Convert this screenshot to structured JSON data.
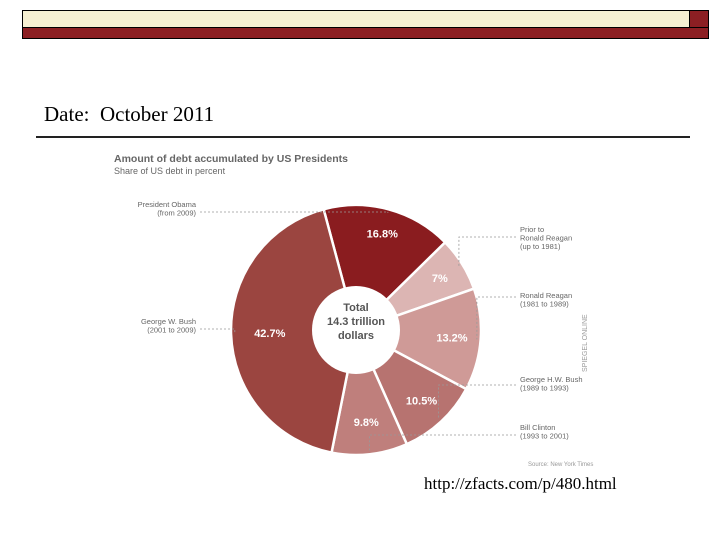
{
  "slide": {
    "date_line": "Date:  October 2011",
    "source_url": "http://zfacts.com/p/480.html"
  },
  "chart_data": {
    "type": "pie",
    "title": "Amount of debt accumulated by US Presidents",
    "subtitle": "Share of US debt in percent",
    "center_label": [
      "Total",
      "14.3 trillion",
      "dollars"
    ],
    "slices": [
      {
        "label": "President Obama (from 2009)",
        "lines": [
          "President Obama",
          "(from 2009)"
        ],
        "value": 16.8,
        "value_label": "16.8%",
        "color": "#8a1c1f"
      },
      {
        "label": "Prior to Ronald Reagan (up to 1981)",
        "lines": [
          "Prior to",
          "Ronald Reagan",
          "(up to 1981)"
        ],
        "value": 7.0,
        "value_label": "7%",
        "color": "#dcb5b3"
      },
      {
        "label": "Ronald Reagan (1981 to 1989)",
        "lines": [
          "Ronald Reagan",
          "(1981 to 1989)"
        ],
        "value": 13.2,
        "value_label": "13.2%",
        "color": "#cf9a97"
      },
      {
        "label": "George H.W. Bush (1989 to 1993)",
        "lines": [
          "George H.W. Bush",
          "(1989 to 1993)"
        ],
        "value": 10.5,
        "value_label": "10.5%",
        "color": "#b77370"
      },
      {
        "label": "Bill Clinton (1993 to 2001)",
        "lines": [
          "Bill Clinton",
          "(1993 to 2001)"
        ],
        "value": 9.8,
        "value_label": "9.8%",
        "color": "#bf7f7c"
      },
      {
        "label": "George W. Bush (2001 to 2009)",
        "lines": [
          "George W. Bush",
          "(2001 to 2009)"
        ],
        "value": 42.7,
        "value_label": "42.7%",
        "color": "#9b4540"
      }
    ],
    "source_note": "Source: New York Times",
    "watermark": "SPIEGEL ONLINE"
  },
  "colors": {
    "title_bar_fill": "#6e6b4d",
    "title_bar_stripe": "#f6f0d2",
    "title_bar_accent": "#8c1f23"
  }
}
